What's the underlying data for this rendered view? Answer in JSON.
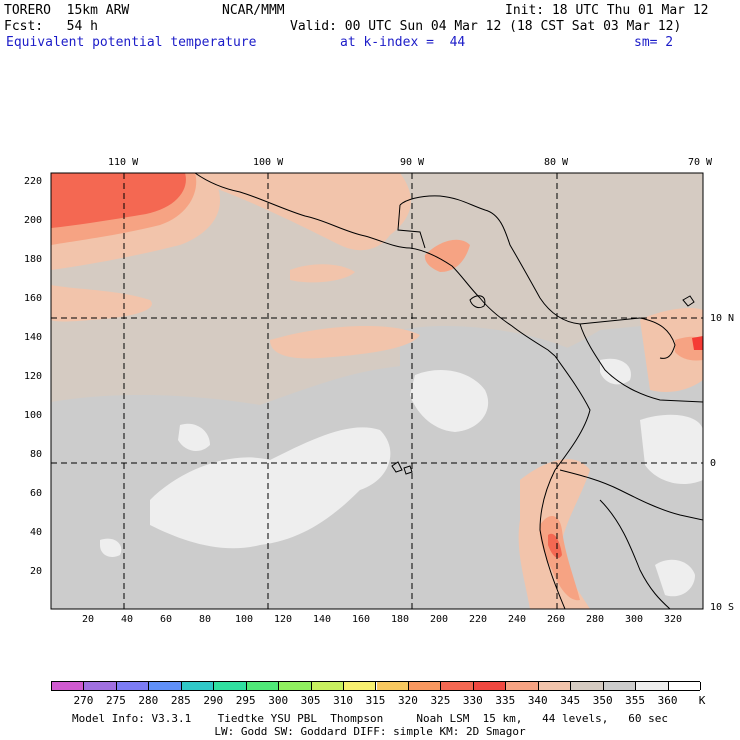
{
  "header": {
    "model": "TORERO  15km ARW",
    "center": "NCAR/MMM",
    "init": "Init: 18 UTC Thu 01 Mar 12",
    "fcst": "Fcst:   54 h",
    "valid": "Valid: 00 UTC Sun 04 Mar 12 (18 CST Sat 03 Mar 12)",
    "field": "Equivalent potential temperature",
    "level": "at k-index =  44",
    "smooth": "sm= 2"
  },
  "map": {
    "top_lon_labels": [
      "110 W",
      "100 W",
      "90 W",
      "80 W",
      "70 W"
    ],
    "right_lat_labels": [
      "10 N",
      "0",
      "10 S"
    ],
    "left_ticks": [
      "220",
      "200",
      "180",
      "160",
      "140",
      "120",
      "100",
      "80",
      "60",
      "40",
      "20"
    ],
    "bottom_ticks": [
      "20",
      "40",
      "60",
      "80",
      "100",
      "120",
      "140",
      "160",
      "180",
      "200",
      "220",
      "240",
      "260",
      "280",
      "300",
      "320"
    ],
    "colors": {
      "ocean_base": "#d5cbc2",
      "cool": "#cccccc",
      "cold": "#eeeeee",
      "warm": "#f2c4ab",
      "hot": "#f6a383",
      "hottest": "#f46852",
      "extreme": "#f53c35"
    }
  },
  "colorbar": {
    "labels": [
      "270",
      "275",
      "280",
      "285",
      "290",
      "295",
      "300",
      "305",
      "310",
      "315",
      "320",
      "325",
      "330",
      "335",
      "340",
      "345",
      "350",
      "355",
      "360"
    ],
    "unit": "K",
    "colors": [
      "#d05ad0",
      "#a070e0",
      "#7c7cf4",
      "#6090f8",
      "#30c8c8",
      "#30e0a0",
      "#50e878",
      "#90f060",
      "#c8f060",
      "#f8f070",
      "#f8c860",
      "#f89860",
      "#f46852",
      "#f04840",
      "#f6a383",
      "#f2c4ab",
      "#d5cbc2",
      "#cccccc",
      "#eeeeee",
      "#ffffff"
    ]
  },
  "footer": {
    "line1": "Model Info: V3.3.1    Tiedtke YSU PBL  Thompson     Noah LSM  15 km,   44 levels,   60 sec",
    "line2": "LW: Godd SW: Goddard DIFF: simple KM: 2D Smagor"
  }
}
